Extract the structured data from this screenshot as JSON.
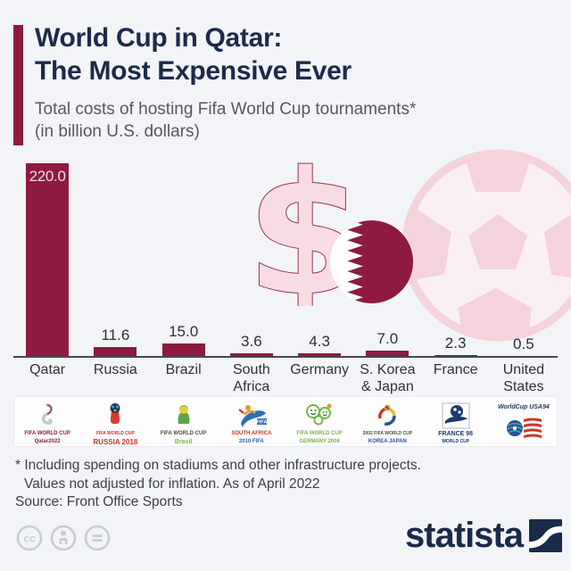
{
  "header": {
    "title_line1": "World Cup in Qatar:",
    "title_line2": "The Most Expensive Ever",
    "subtitle_line1": "Total costs of hosting Fifa World Cup tournaments*",
    "subtitle_line2": "(in billion U.S. dollars)"
  },
  "chart_data": {
    "type": "bar",
    "title": "World Cup in Qatar: The Most Expensive Ever",
    "subtitle": "Total costs of hosting Fifa World Cup tournaments* (in billion U.S. dollars)",
    "categories": [
      "Qatar",
      "Russia",
      "Brazil",
      "South Africa",
      "Germany",
      "S. Korea & Japan",
      "France",
      "United States"
    ],
    "category_lines": [
      [
        "Qatar"
      ],
      [
        "Russia"
      ],
      [
        "Brazil"
      ],
      [
        "South",
        "Africa"
      ],
      [
        "Germany"
      ],
      [
        "S. Korea",
        "& Japan"
      ],
      [
        "France"
      ],
      [
        "United",
        "States"
      ]
    ],
    "values": [
      220.0,
      11.6,
      15.0,
      3.6,
      4.3,
      7.0,
      2.3,
      0.5
    ],
    "value_labels": [
      "220.0",
      "11.6",
      "15.0",
      "3.6",
      "4.3",
      "7.0",
      "2.3",
      "0.5"
    ],
    "xlabel": "",
    "ylabel": "Total cost in billion U.S. dollars",
    "ylim": [
      0,
      220
    ],
    "grid": false,
    "legend": false,
    "bar_color": "#8e1a3f"
  },
  "logos": [
    {
      "name": "fifa-world-cup-qatar-2022",
      "cap1": "FIFA WORLD CUP",
      "cap2": "Qatar2022"
    },
    {
      "name": "fifa-world-cup-russia-2018",
      "cap1": "FIFA WORLD CUP",
      "cap2": "RUSSIA 2018"
    },
    {
      "name": "fifa-world-cup-brasil-2014",
      "cap1": "FIFA WORLD CUP",
      "cap2": "Brasil"
    },
    {
      "name": "fifa-world-cup-south-africa-2010",
      "cap1": "SOUTH AFRICA",
      "cap2": "2010 FIFA"
    },
    {
      "name": "fifa-world-cup-germany-2006",
      "cap1": "FIFA WORLD CUP",
      "cap2": "GERMANY 2006"
    },
    {
      "name": "fifa-world-cup-korea-japan-2002",
      "cap1": "2002 FIFA WORLD CUP",
      "cap2": "KOREA JAPAN"
    },
    {
      "name": "france-98-world-cup",
      "cap1": "FRANCE 98",
      "cap2": "WORLD CUP"
    },
    {
      "name": "world-cup-usa-94",
      "cap1": "WorldCup USA94",
      "cap2": ""
    }
  ],
  "footnotes": {
    "line1": "* Including spending on stadiums and other infrastructure projects.",
    "line2": "Values not adjusted for inflation. As of April 2022",
    "source": "Source: Front Office Sports"
  },
  "footer": {
    "brand": "statista",
    "license_icons": [
      "cc",
      "attribution",
      "no-derivatives"
    ]
  },
  "colors": {
    "maroon": "#8e1a3f",
    "navy": "#1a2b49",
    "decor_pink": "#f5d3dc",
    "background": "#f2f4f8"
  }
}
